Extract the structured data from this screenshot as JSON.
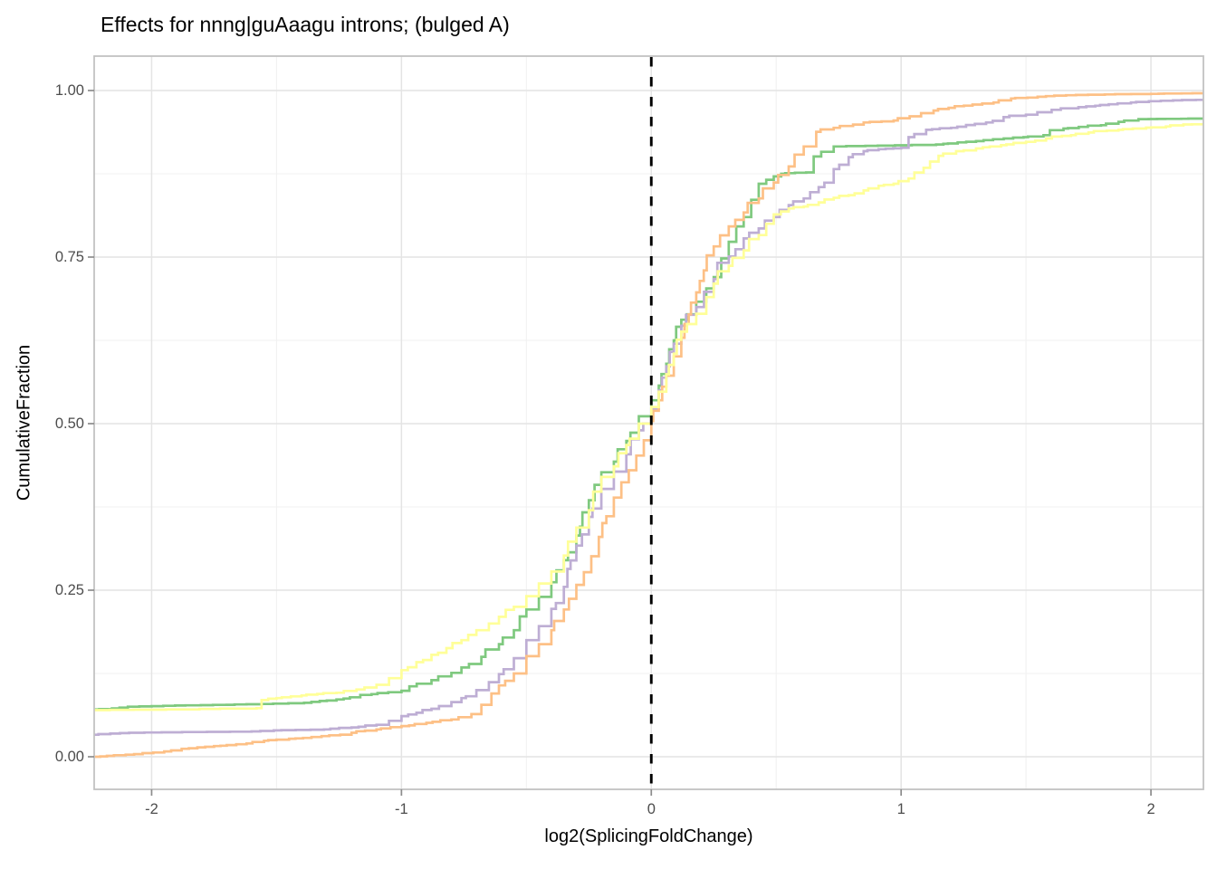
{
  "title": "Effects for nnng|guAaagu introns; (bulged A)",
  "colors": {
    "background": "#FFFFFF",
    "panel_border": "#C2C2C2",
    "grid_major": "#E4E4E4",
    "grid_minor": "#F1F1F1",
    "tick_mark": "#8C8C8C",
    "tick_label": "#4D4D4D",
    "title_text": "#000000",
    "axis_title_text": "#000000",
    "vline": "#000000",
    "series_green": "#7FC97F",
    "series_purple": "#BEAED4",
    "series_orange": "#FDC086",
    "series_yellow": "#FFFF99"
  },
  "chart_data": {
    "type": "line",
    "subtype": "ecdf-step",
    "title": "Effects for nnng|guAaagu introns; (bulged A)",
    "xlabel": "log2(SplicingFoldChange)",
    "ylabel": "CumulativeFraction",
    "xlim": [
      -2.23,
      2.21
    ],
    "ylim": [
      0,
      1
    ],
    "grid": true,
    "legend": "none",
    "x_ticks": [
      -2,
      -1,
      0,
      1,
      2
    ],
    "x_tick_labels": [
      "-2",
      "-1",
      "0",
      "1",
      "2"
    ],
    "x_minor_ticks": [
      -1.5,
      -0.5,
      0.5,
      1.5
    ],
    "y_ticks": [
      0,
      0.25,
      0.5,
      0.75,
      1
    ],
    "y_tick_labels": [
      "0.00",
      "0.25",
      "0.50",
      "0.75",
      "1.00"
    ],
    "y_minor_ticks": [
      0.125,
      0.375,
      0.625,
      0.875
    ],
    "vline": {
      "x": 0,
      "style": "dashed",
      "color": "#000000"
    },
    "series": [
      {
        "name": "green",
        "color": "#7FC97F",
        "points": [
          [
            -2.23,
            0.071
          ],
          [
            -2.0,
            0.076
          ],
          [
            -1.7,
            0.078
          ],
          [
            -1.39,
            0.081
          ],
          [
            -1.26,
            0.086
          ],
          [
            -1.12,
            0.094
          ],
          [
            -1.0,
            0.099
          ],
          [
            -0.88,
            0.115
          ],
          [
            -0.8,
            0.126
          ],
          [
            -0.76,
            0.134
          ],
          [
            -0.68,
            0.15
          ],
          [
            -0.61,
            0.169
          ],
          [
            -0.55,
            0.19
          ],
          [
            -0.5,
            0.221
          ],
          [
            -0.45,
            0.24
          ],
          [
            -0.4,
            0.262
          ],
          [
            -0.35,
            0.295
          ],
          [
            -0.3,
            0.332
          ],
          [
            -0.25,
            0.385
          ],
          [
            -0.2,
            0.427
          ],
          [
            -0.15,
            0.443
          ],
          [
            -0.1,
            0.474
          ],
          [
            -0.05,
            0.511
          ],
          [
            0.0,
            0.535
          ],
          [
            0.03,
            0.557
          ],
          [
            0.06,
            0.59
          ],
          [
            0.09,
            0.625
          ],
          [
            0.12,
            0.656
          ],
          [
            0.18,
            0.683
          ],
          [
            0.22,
            0.703
          ],
          [
            0.25,
            0.72
          ],
          [
            0.28,
            0.748
          ],
          [
            0.31,
            0.773
          ],
          [
            0.34,
            0.796
          ],
          [
            0.37,
            0.81
          ],
          [
            0.4,
            0.836
          ],
          [
            0.43,
            0.86
          ],
          [
            0.46,
            0.866
          ],
          [
            0.49,
            0.871
          ],
          [
            0.52,
            0.875
          ],
          [
            0.62,
            0.877
          ],
          [
            0.65,
            0.901
          ],
          [
            0.68,
            0.908
          ],
          [
            0.73,
            0.916
          ],
          [
            1.14,
            0.919
          ],
          [
            1.3,
            0.924
          ],
          [
            1.49,
            0.93
          ],
          [
            1.57,
            0.933
          ],
          [
            1.65,
            0.943
          ],
          [
            1.8,
            0.948
          ],
          [
            1.87,
            0.953
          ],
          [
            1.95,
            0.957
          ],
          [
            2.21,
            0.958
          ]
        ]
      },
      {
        "name": "purple",
        "color": "#BEAED4",
        "points": [
          [
            -2.23,
            0.033
          ],
          [
            -2.09,
            0.036
          ],
          [
            -1.6,
            0.038
          ],
          [
            -1.31,
            0.041
          ],
          [
            -1.2,
            0.044
          ],
          [
            -1.1,
            0.048
          ],
          [
            -1.05,
            0.054
          ],
          [
            -1.0,
            0.061
          ],
          [
            -0.94,
            0.066
          ],
          [
            -0.88,
            0.072
          ],
          [
            -0.8,
            0.082
          ],
          [
            -0.76,
            0.088
          ],
          [
            -0.7,
            0.1
          ],
          [
            -0.65,
            0.112
          ],
          [
            -0.61,
            0.124
          ],
          [
            -0.55,
            0.148
          ],
          [
            -0.5,
            0.175
          ],
          [
            -0.45,
            0.196
          ],
          [
            -0.4,
            0.222
          ],
          [
            -0.35,
            0.255
          ],
          [
            -0.3,
            0.317
          ],
          [
            -0.25,
            0.36
          ],
          [
            -0.2,
            0.402
          ],
          [
            -0.15,
            0.428
          ],
          [
            -0.1,
            0.454
          ],
          [
            -0.05,
            0.49
          ],
          [
            0.0,
            0.522
          ],
          [
            0.03,
            0.55
          ],
          [
            0.06,
            0.586
          ],
          [
            0.09,
            0.62
          ],
          [
            0.12,
            0.647
          ],
          [
            0.18,
            0.675
          ],
          [
            0.25,
            0.717
          ],
          [
            0.31,
            0.751
          ],
          [
            0.37,
            0.778
          ],
          [
            0.43,
            0.793
          ],
          [
            0.49,
            0.81
          ],
          [
            0.55,
            0.828
          ],
          [
            0.61,
            0.838
          ],
          [
            0.67,
            0.855
          ],
          [
            0.73,
            0.882
          ],
          [
            0.79,
            0.9
          ],
          [
            0.85,
            0.909
          ],
          [
            0.91,
            0.912
          ],
          [
            1.0,
            0.914
          ],
          [
            1.03,
            0.93
          ],
          [
            1.1,
            0.941
          ],
          [
            1.2,
            0.944
          ],
          [
            1.34,
            0.952
          ],
          [
            1.41,
            0.96
          ],
          [
            1.71,
            0.975
          ],
          [
            1.92,
            0.982
          ],
          [
            2.18,
            0.986
          ],
          [
            2.21,
            0.986
          ]
        ]
      },
      {
        "name": "orange",
        "color": "#FDC086",
        "points": [
          [
            -2.23,
            0.0
          ],
          [
            -2.07,
            0.004
          ],
          [
            -1.95,
            0.008
          ],
          [
            -1.88,
            0.012
          ],
          [
            -1.75,
            0.016
          ],
          [
            -1.62,
            0.02
          ],
          [
            -1.55,
            0.024
          ],
          [
            -1.45,
            0.027
          ],
          [
            -1.32,
            0.031
          ],
          [
            -1.2,
            0.036
          ],
          [
            -1.1,
            0.041
          ],
          [
            -1.0,
            0.046
          ],
          [
            -0.9,
            0.051
          ],
          [
            -0.8,
            0.056
          ],
          [
            -0.72,
            0.064
          ],
          [
            -0.68,
            0.078
          ],
          [
            -0.64,
            0.095
          ],
          [
            -0.61,
            0.107
          ],
          [
            -0.55,
            0.125
          ],
          [
            -0.5,
            0.151
          ],
          [
            -0.45,
            0.169
          ],
          [
            -0.4,
            0.19
          ],
          [
            -0.35,
            0.221
          ],
          [
            -0.3,
            0.258
          ],
          [
            -0.27,
            0.277
          ],
          [
            -0.24,
            0.301
          ],
          [
            -0.21,
            0.33
          ],
          [
            -0.18,
            0.361
          ],
          [
            -0.15,
            0.389
          ],
          [
            -0.12,
            0.412
          ],
          [
            -0.09,
            0.43
          ],
          [
            -0.06,
            0.452
          ],
          [
            -0.03,
            0.475
          ],
          [
            0.0,
            0.504
          ],
          [
            0.03,
            0.535
          ],
          [
            0.06,
            0.572
          ],
          [
            0.09,
            0.601
          ],
          [
            0.12,
            0.629
          ],
          [
            0.15,
            0.664
          ],
          [
            0.18,
            0.697
          ],
          [
            0.21,
            0.73
          ],
          [
            0.25,
            0.766
          ],
          [
            0.31,
            0.796
          ],
          [
            0.37,
            0.817
          ],
          [
            0.43,
            0.838
          ],
          [
            0.49,
            0.862
          ],
          [
            0.55,
            0.886
          ],
          [
            0.61,
            0.916
          ],
          [
            0.66,
            0.938
          ],
          [
            0.73,
            0.944
          ],
          [
            0.85,
            0.952
          ],
          [
            0.97,
            0.955
          ],
          [
            1.08,
            0.966
          ],
          [
            1.13,
            0.97
          ],
          [
            1.19,
            0.974
          ],
          [
            1.37,
            0.982
          ],
          [
            1.44,
            0.988
          ],
          [
            1.66,
            0.993
          ],
          [
            2.0,
            0.995
          ],
          [
            2.21,
            0.996
          ]
        ]
      },
      {
        "name": "yellow",
        "color": "#FFFF99",
        "points": [
          [
            -2.23,
            0.07
          ],
          [
            -1.58,
            0.073
          ],
          [
            -1.56,
            0.085
          ],
          [
            -1.5,
            0.088
          ],
          [
            -1.4,
            0.092
          ],
          [
            -1.26,
            0.096
          ],
          [
            -1.18,
            0.101
          ],
          [
            -1.1,
            0.108
          ],
          [
            -1.05,
            0.118
          ],
          [
            -1.0,
            0.13
          ],
          [
            -0.94,
            0.142
          ],
          [
            -0.88,
            0.153
          ],
          [
            -0.82,
            0.163
          ],
          [
            -0.76,
            0.175
          ],
          [
            -0.7,
            0.19
          ],
          [
            -0.65,
            0.2
          ],
          [
            -0.61,
            0.21
          ],
          [
            -0.55,
            0.225
          ],
          [
            -0.5,
            0.241
          ],
          [
            -0.45,
            0.26
          ],
          [
            -0.4,
            0.278
          ],
          [
            -0.35,
            0.302
          ],
          [
            -0.3,
            0.344
          ],
          [
            -0.25,
            0.37
          ],
          [
            -0.2,
            0.42
          ],
          [
            -0.15,
            0.436
          ],
          [
            -0.1,
            0.468
          ],
          [
            -0.05,
            0.5
          ],
          [
            0.0,
            0.525
          ],
          [
            0.03,
            0.548
          ],
          [
            0.06,
            0.574
          ],
          [
            0.09,
            0.605
          ],
          [
            0.12,
            0.638
          ],
          [
            0.18,
            0.665
          ],
          [
            0.22,
            0.69
          ],
          [
            0.25,
            0.71
          ],
          [
            0.31,
            0.737
          ],
          [
            0.37,
            0.76
          ],
          [
            0.43,
            0.783
          ],
          [
            0.46,
            0.8
          ],
          [
            0.49,
            0.814
          ],
          [
            0.55,
            0.823
          ],
          [
            0.61,
            0.826
          ],
          [
            0.67,
            0.832
          ],
          [
            0.73,
            0.839
          ],
          [
            0.79,
            0.843
          ],
          [
            0.85,
            0.85
          ],
          [
            0.91,
            0.857
          ],
          [
            0.97,
            0.86
          ],
          [
            1.03,
            0.868
          ],
          [
            1.09,
            0.884
          ],
          [
            1.15,
            0.902
          ],
          [
            1.22,
            0.909
          ],
          [
            1.3,
            0.913
          ],
          [
            1.4,
            0.918
          ],
          [
            1.5,
            0.923
          ],
          [
            1.58,
            0.928
          ],
          [
            1.68,
            0.933
          ],
          [
            1.75,
            0.937
          ],
          [
            1.87,
            0.941
          ],
          [
            2.06,
            0.946
          ],
          [
            2.13,
            0.949
          ],
          [
            2.21,
            0.95
          ]
        ]
      }
    ]
  }
}
